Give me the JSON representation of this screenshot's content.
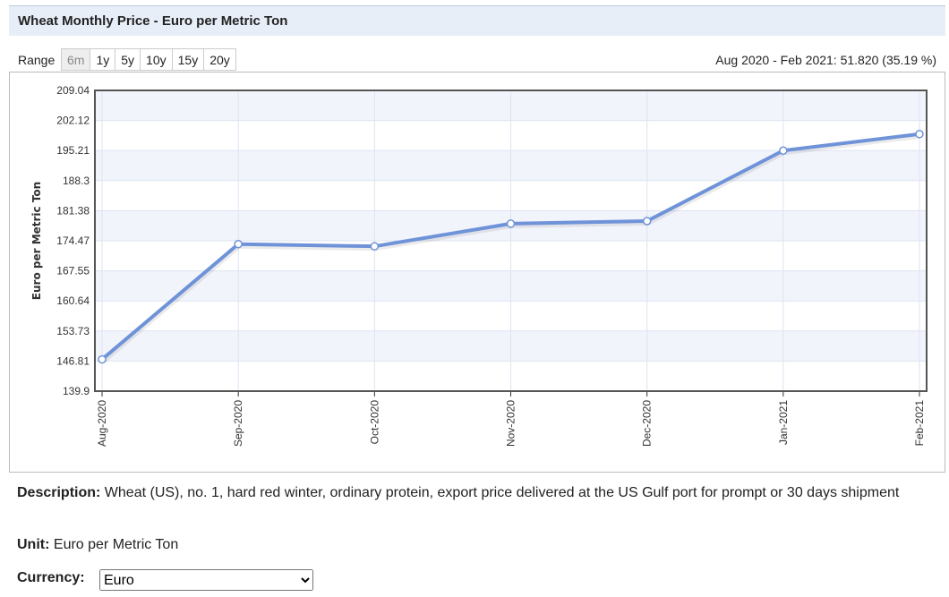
{
  "header": {
    "title": "Wheat Monthly Price - Euro per Metric Ton"
  },
  "range": {
    "label": "Range",
    "buttons": [
      "6m",
      "1y",
      "5y",
      "10y",
      "15y",
      "20y"
    ],
    "disabled": "6m"
  },
  "change_text": "Aug 2020 - Feb 2021: 51.820 (35.19 %)",
  "chart_data": {
    "type": "line",
    "title": "",
    "xlabel": "",
    "ylabel": "Euro per Metric Ton",
    "categories": [
      "Aug-2020",
      "Sep-2020",
      "Oct-2020",
      "Nov-2020",
      "Dec-2020",
      "Jan-2021",
      "Feb-2021"
    ],
    "series": [
      {
        "values": [
          147.2,
          173.7,
          173.2,
          178.4,
          179.0,
          195.2,
          199.0
        ]
      }
    ],
    "yticks": [
      "139.9",
      "146.81",
      "153.73",
      "160.64",
      "167.55",
      "174.47",
      "181.38",
      "188.3",
      "195.21",
      "202.12",
      "209.04"
    ],
    "ylim": [
      139.9,
      209.04
    ],
    "grid": true,
    "line_color": "#6f93d8",
    "band_color": "#f2f4fc"
  },
  "description": {
    "label": "Description:",
    "text": "Wheat (US), no. 1, hard red winter, ordinary protein, export price delivered at the US Gulf port for prompt or 30 days shipment"
  },
  "unit": {
    "label": "Unit:",
    "text": "Euro per Metric Ton"
  },
  "currency": {
    "label": "Currency:",
    "selected": "Euro"
  }
}
